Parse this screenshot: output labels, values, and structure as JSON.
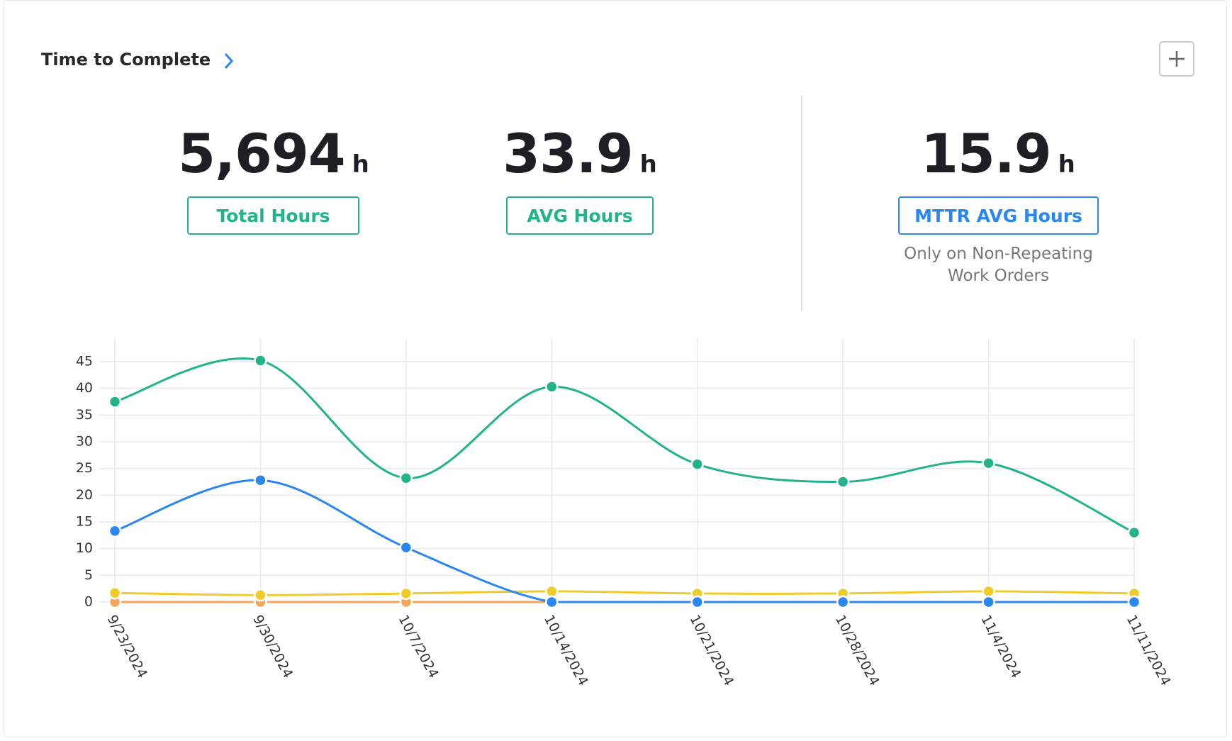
{
  "title": "Time to Complete",
  "kpis": [
    {
      "value": "5,694",
      "unit": "h",
      "label": "Total Hours"
    },
    {
      "value": "33.9",
      "unit": "h",
      "label": "AVG Hours"
    },
    {
      "value": "15.9",
      "unit": "h",
      "label": "MTTR AVG Hours",
      "note": [
        "Only on Non-Repeating",
        "Work Orders"
      ]
    }
  ],
  "chart_data": {
    "type": "line",
    "categories": [
      "9/23/2024",
      "9/30/2024",
      "10/7/2024",
      "10/14/2024",
      "10/21/2024",
      "10/28/2024",
      "11/4/2024",
      "11/11/2024"
    ],
    "series": [
      {
        "color": "#f5a55a",
        "values": [
          0,
          0,
          0,
          0,
          0,
          0,
          0,
          0
        ]
      },
      {
        "color": "#f0cc2a",
        "values": [
          1.7,
          1.3,
          1.6,
          2,
          1.6,
          1.6,
          2,
          1.6
        ]
      },
      {
        "color": "#2a86f0",
        "values": [
          13.3,
          22.8,
          10.2,
          0,
          0,
          0,
          0,
          0
        ]
      },
      {
        "color": "#22b38a",
        "values": [
          37.5,
          45.2,
          23.2,
          40.3,
          25.8,
          22.5,
          26,
          13
        ]
      }
    ],
    "ylim": [
      0,
      45
    ],
    "yticks": [
      0,
      5,
      10,
      15,
      20,
      25,
      30,
      35,
      40,
      45
    ],
    "grid": true
  }
}
